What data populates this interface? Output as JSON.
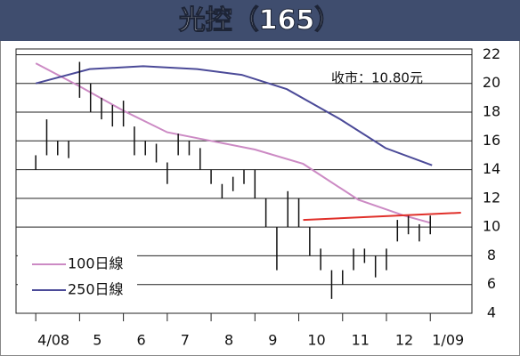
{
  "chart_data": {
    "type": "stock",
    "title": "光控（165）",
    "annotation": "收市：10.80元",
    "xlim": [
      -0.45,
      9.95
    ],
    "xticks": [
      {
        "value": 0,
        "label": "4/08"
      },
      {
        "value": 1,
        "label": "5"
      },
      {
        "value": 2,
        "label": "6"
      },
      {
        "value": 3,
        "label": "7"
      },
      {
        "value": 4,
        "label": "8"
      },
      {
        "value": 5,
        "label": "9"
      },
      {
        "value": 6,
        "label": "10"
      },
      {
        "value": 7,
        "label": "11"
      },
      {
        "value": 8,
        "label": "12"
      },
      {
        "value": 9,
        "label": "1/09"
      }
    ],
    "ylim": [
      4,
      22.4
    ],
    "yticks": [
      4,
      6,
      8,
      10,
      12,
      14,
      16,
      18,
      20,
      22
    ],
    "grid": true,
    "bar_color": "#111111",
    "x": [
      0,
      0.25,
      0.5,
      0.75,
      1,
      1.25,
      1.5,
      1.75,
      2,
      2.25,
      2.5,
      2.75,
      3,
      3.25,
      3.5,
      3.75,
      4,
      4.25,
      4.5,
      4.75,
      5,
      5.25,
      5.5,
      5.75,
      6,
      6.25,
      6.5,
      6.75,
      7,
      7.25,
      7.5,
      7.75,
      8,
      8.25,
      8.5,
      8.75,
      9
    ],
    "high": [
      15,
      17.5,
      16,
      16,
      21.5,
      20,
      19,
      18.5,
      18.8,
      17,
      16,
      15.8,
      14.5,
      16.5,
      16,
      15.5,
      14,
      13,
      13.5,
      14,
      14,
      12,
      10,
      12.5,
      12,
      10,
      8.5,
      7,
      7,
      8.5,
      8.5,
      8,
      8.5,
      10.5,
      10.8,
      10.2,
      10.8
    ],
    "low": [
      14,
      15,
      15,
      14.8,
      19,
      18,
      17.5,
      17,
      17,
      15,
      15,
      14.5,
      13,
      15,
      15,
      14,
      13,
      12,
      12.5,
      13,
      12,
      10,
      7,
      10,
      10,
      8,
      7,
      5,
      6,
      7,
      7.5,
      6.5,
      7,
      9,
      9.5,
      9,
      9.5
    ],
    "series": [
      {
        "name": "100日線",
        "color": "#cc8ac4",
        "x": [
          0,
          1,
          2,
          3,
          4,
          5,
          6.1,
          7.36,
          8.4,
          9
        ],
        "values": [
          21.4,
          19.8,
          18.1,
          16.6,
          16.0,
          15.4,
          14.4,
          11.9,
          10.8,
          10.3
        ]
      },
      {
        "name": "250日線",
        "color": "#4b4a98",
        "x": [
          0,
          1.23,
          2.45,
          3.68,
          4.7,
          5.73,
          6.95,
          7.98,
          9.04
        ],
        "values": [
          20.0,
          21.0,
          21.2,
          21.0,
          20.6,
          19.6,
          17.5,
          15.5,
          14.3
        ]
      }
    ],
    "trendline": {
      "color": "#e0302a",
      "x": [
        6.1,
        9.7
      ],
      "values": [
        10.5,
        11.0
      ]
    }
  }
}
